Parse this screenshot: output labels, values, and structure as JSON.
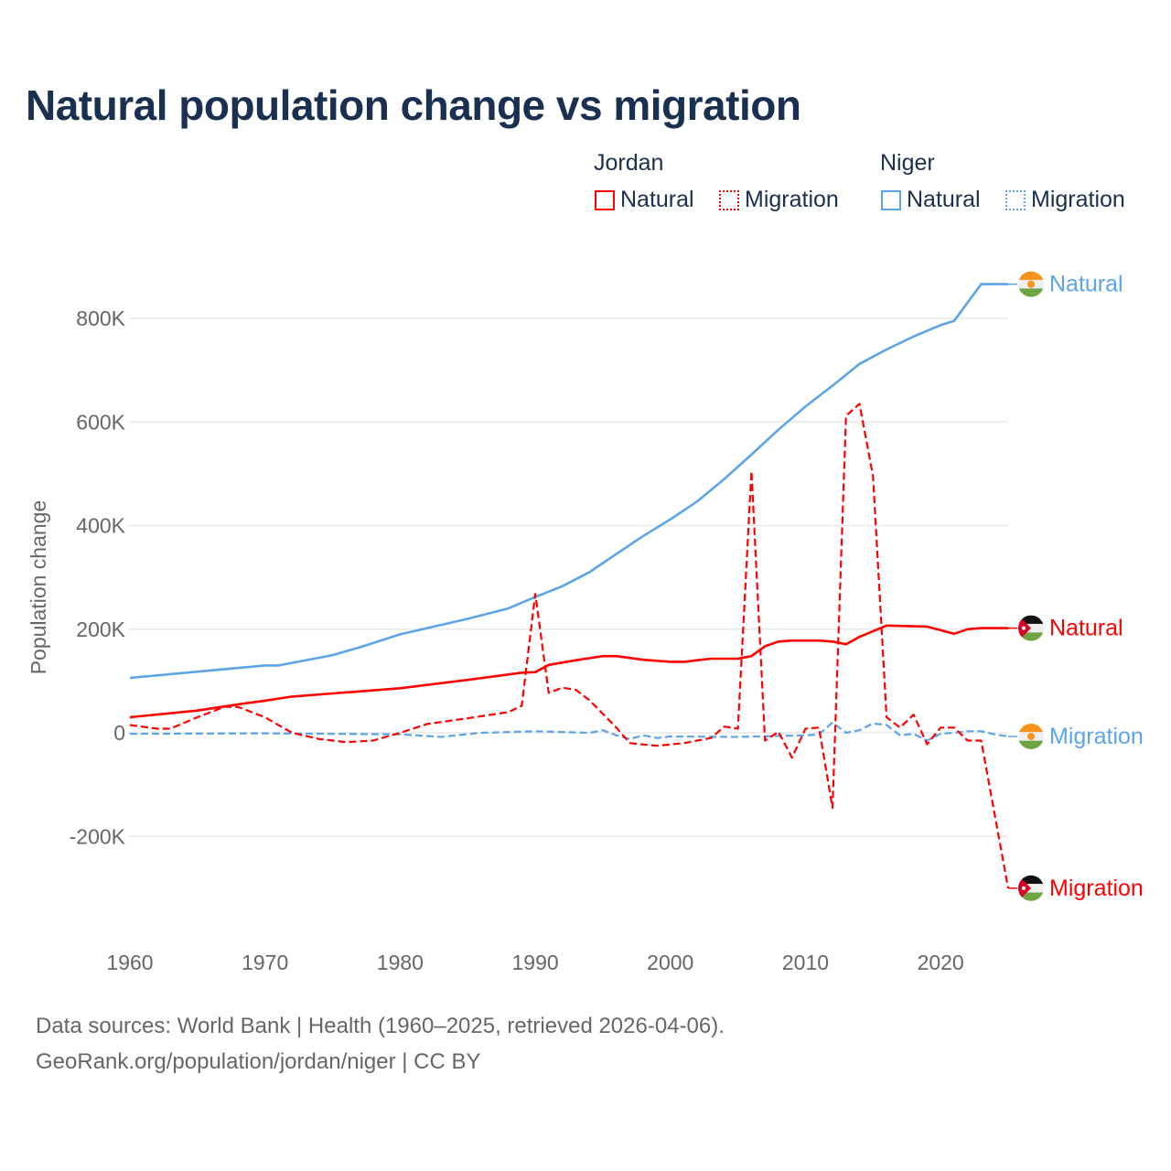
{
  "chart_data": {
    "type": "line",
    "title": "Natural population change vs migration",
    "xlabel": "",
    "ylabel": "Population change",
    "xlim": [
      1960,
      2025
    ],
    "ylim": [
      -300000,
      900000
    ],
    "x_ticks": [
      1960,
      1970,
      1980,
      1990,
      2000,
      2010,
      2020
    ],
    "x_tick_labels": [
      "1960",
      "1970",
      "1980",
      "1990",
      "2000",
      "2010",
      "2020"
    ],
    "y_ticks": [
      -200000,
      0,
      200000,
      400000,
      600000,
      800000
    ],
    "y_tick_labels": [
      "-200K",
      "0",
      "200K",
      "400K",
      "600K",
      "800K"
    ],
    "grid": true,
    "legend": {
      "placement": "top-right",
      "groups": [
        {
          "name": "Jordan",
          "items": [
            "Natural",
            "Migration"
          ]
        },
        {
          "name": "Niger",
          "items": [
            "Natural",
            "Migration"
          ]
        }
      ]
    },
    "series": [
      {
        "country": "Niger",
        "name": "Natural",
        "label": "Natural",
        "color": "#5ba4e8",
        "dashed": false,
        "points": [
          [
            1960,
            106000
          ],
          [
            1965,
            118000
          ],
          [
            1970,
            130000
          ],
          [
            1971,
            130000
          ],
          [
            1975,
            150000
          ],
          [
            1977,
            165000
          ],
          [
            1980,
            190000
          ],
          [
            1985,
            220000
          ],
          [
            1988,
            240000
          ],
          [
            1990,
            262000
          ],
          [
            1992,
            283000
          ],
          [
            1994,
            310000
          ],
          [
            1996,
            345000
          ],
          [
            1998,
            380000
          ],
          [
            2000,
            412000
          ],
          [
            2002,
            447000
          ],
          [
            2004,
            490000
          ],
          [
            2006,
            537000
          ],
          [
            2008,
            585000
          ],
          [
            2010,
            630000
          ],
          [
            2012,
            670000
          ],
          [
            2014,
            712000
          ],
          [
            2016,
            740000
          ],
          [
            2018,
            765000
          ],
          [
            2020,
            787000
          ],
          [
            2021,
            795000
          ],
          [
            2023,
            866000
          ],
          [
            2024,
            866000
          ],
          [
            2025,
            866000
          ]
        ]
      },
      {
        "country": "Jordan",
        "name": "Natural",
        "label": "Natural",
        "color": "#ff0000",
        "dashed": false,
        "points": [
          [
            1960,
            30000
          ],
          [
            1965,
            43000
          ],
          [
            1968,
            55000
          ],
          [
            1970,
            62000
          ],
          [
            1972,
            70000
          ],
          [
            1975,
            76000
          ],
          [
            1980,
            86000
          ],
          [
            1985,
            102000
          ],
          [
            1989,
            116000
          ],
          [
            1990,
            117000
          ],
          [
            1991,
            131000
          ],
          [
            1993,
            140000
          ],
          [
            1995,
            148000
          ],
          [
            1996,
            148000
          ],
          [
            1998,
            141000
          ],
          [
            2000,
            137000
          ],
          [
            2001,
            137000
          ],
          [
            2003,
            143000
          ],
          [
            2005,
            143000
          ],
          [
            2006,
            148000
          ],
          [
            2007,
            167000
          ],
          [
            2008,
            176000
          ],
          [
            2009,
            178000
          ],
          [
            2011,
            178000
          ],
          [
            2012,
            176000
          ],
          [
            2013,
            171000
          ],
          [
            2014,
            185000
          ],
          [
            2016,
            207000
          ],
          [
            2019,
            205000
          ],
          [
            2021,
            191000
          ],
          [
            2022,
            200000
          ],
          [
            2023,
            202000
          ],
          [
            2024,
            202000
          ],
          [
            2025,
            202000
          ]
        ]
      },
      {
        "country": "Niger",
        "name": "Migration",
        "label": "Migration",
        "color": "#5ba4e8",
        "dashed": true,
        "points": [
          [
            1960,
            -2000
          ],
          [
            1970,
            -1000
          ],
          [
            1980,
            -3000
          ],
          [
            1983,
            -8000
          ],
          [
            1986,
            0
          ],
          [
            1990,
            3000
          ],
          [
            1994,
            0
          ],
          [
            1995,
            5000
          ],
          [
            1996,
            -5000
          ],
          [
            1997,
            -12000
          ],
          [
            1998,
            -5000
          ],
          [
            1999,
            -10000
          ],
          [
            2000,
            -7000
          ],
          [
            2005,
            -8000
          ],
          [
            2010,
            -5000
          ],
          [
            2011,
            -3000
          ],
          [
            2012,
            20000
          ],
          [
            2013,
            0
          ],
          [
            2014,
            5000
          ],
          [
            2015,
            18000
          ],
          [
            2016,
            15000
          ],
          [
            2017,
            -5000
          ],
          [
            2018,
            -2000
          ],
          [
            2019,
            -15000
          ],
          [
            2020,
            -2000
          ],
          [
            2021,
            0
          ],
          [
            2022,
            3000
          ],
          [
            2023,
            3000
          ],
          [
            2024,
            -3000
          ],
          [
            2025,
            -7000
          ]
        ]
      },
      {
        "country": "Jordan",
        "name": "Migration",
        "label": "Migration",
        "color": "#ff0000",
        "dashed": true,
        "points": [
          [
            1960,
            15000
          ],
          [
            1962,
            8000
          ],
          [
            1963,
            8000
          ],
          [
            1965,
            30000
          ],
          [
            1967,
            50000
          ],
          [
            1968,
            50000
          ],
          [
            1970,
            30000
          ],
          [
            1972,
            0
          ],
          [
            1974,
            -12000
          ],
          [
            1976,
            -18000
          ],
          [
            1978,
            -15000
          ],
          [
            1980,
            0
          ],
          [
            1982,
            17000
          ],
          [
            1985,
            28000
          ],
          [
            1988,
            40000
          ],
          [
            1989,
            52000
          ],
          [
            1990,
            268000
          ],
          [
            1991,
            77000
          ],
          [
            1992,
            87000
          ],
          [
            1993,
            83000
          ],
          [
            1994,
            63000
          ],
          [
            1996,
            10000
          ],
          [
            1997,
            -20000
          ],
          [
            1999,
            -25000
          ],
          [
            2001,
            -20000
          ],
          [
            2003,
            -10000
          ],
          [
            2004,
            12000
          ],
          [
            2005,
            8000
          ],
          [
            2006,
            505000
          ],
          [
            2007,
            -15000
          ],
          [
            2008,
            2000
          ],
          [
            2009,
            -48000
          ],
          [
            2010,
            8000
          ],
          [
            2011,
            10000
          ],
          [
            2012,
            -145000
          ],
          [
            2013,
            612000
          ],
          [
            2014,
            635000
          ],
          [
            2015,
            495000
          ],
          [
            2016,
            30000
          ],
          [
            2017,
            10000
          ],
          [
            2018,
            35000
          ],
          [
            2019,
            -22000
          ],
          [
            2020,
            10000
          ],
          [
            2021,
            10000
          ],
          [
            2022,
            -15000
          ],
          [
            2023,
            -15000
          ],
          [
            2024,
            -157000
          ],
          [
            2025,
            -300000
          ]
        ]
      }
    ]
  },
  "legend": {
    "jordan": "Jordan",
    "niger": "Niger",
    "natural": "Natural",
    "migration": "Migration"
  },
  "footer": {
    "line1": "Data sources: World Bank | Health (1960–2025, retrieved 2026-04-06).",
    "line2": "GeoRank.org/population/jordan/niger | CC BY"
  },
  "colors": {
    "jordan": "#ff0000",
    "niger": "#5ba4e8",
    "title": "#1a3050"
  }
}
